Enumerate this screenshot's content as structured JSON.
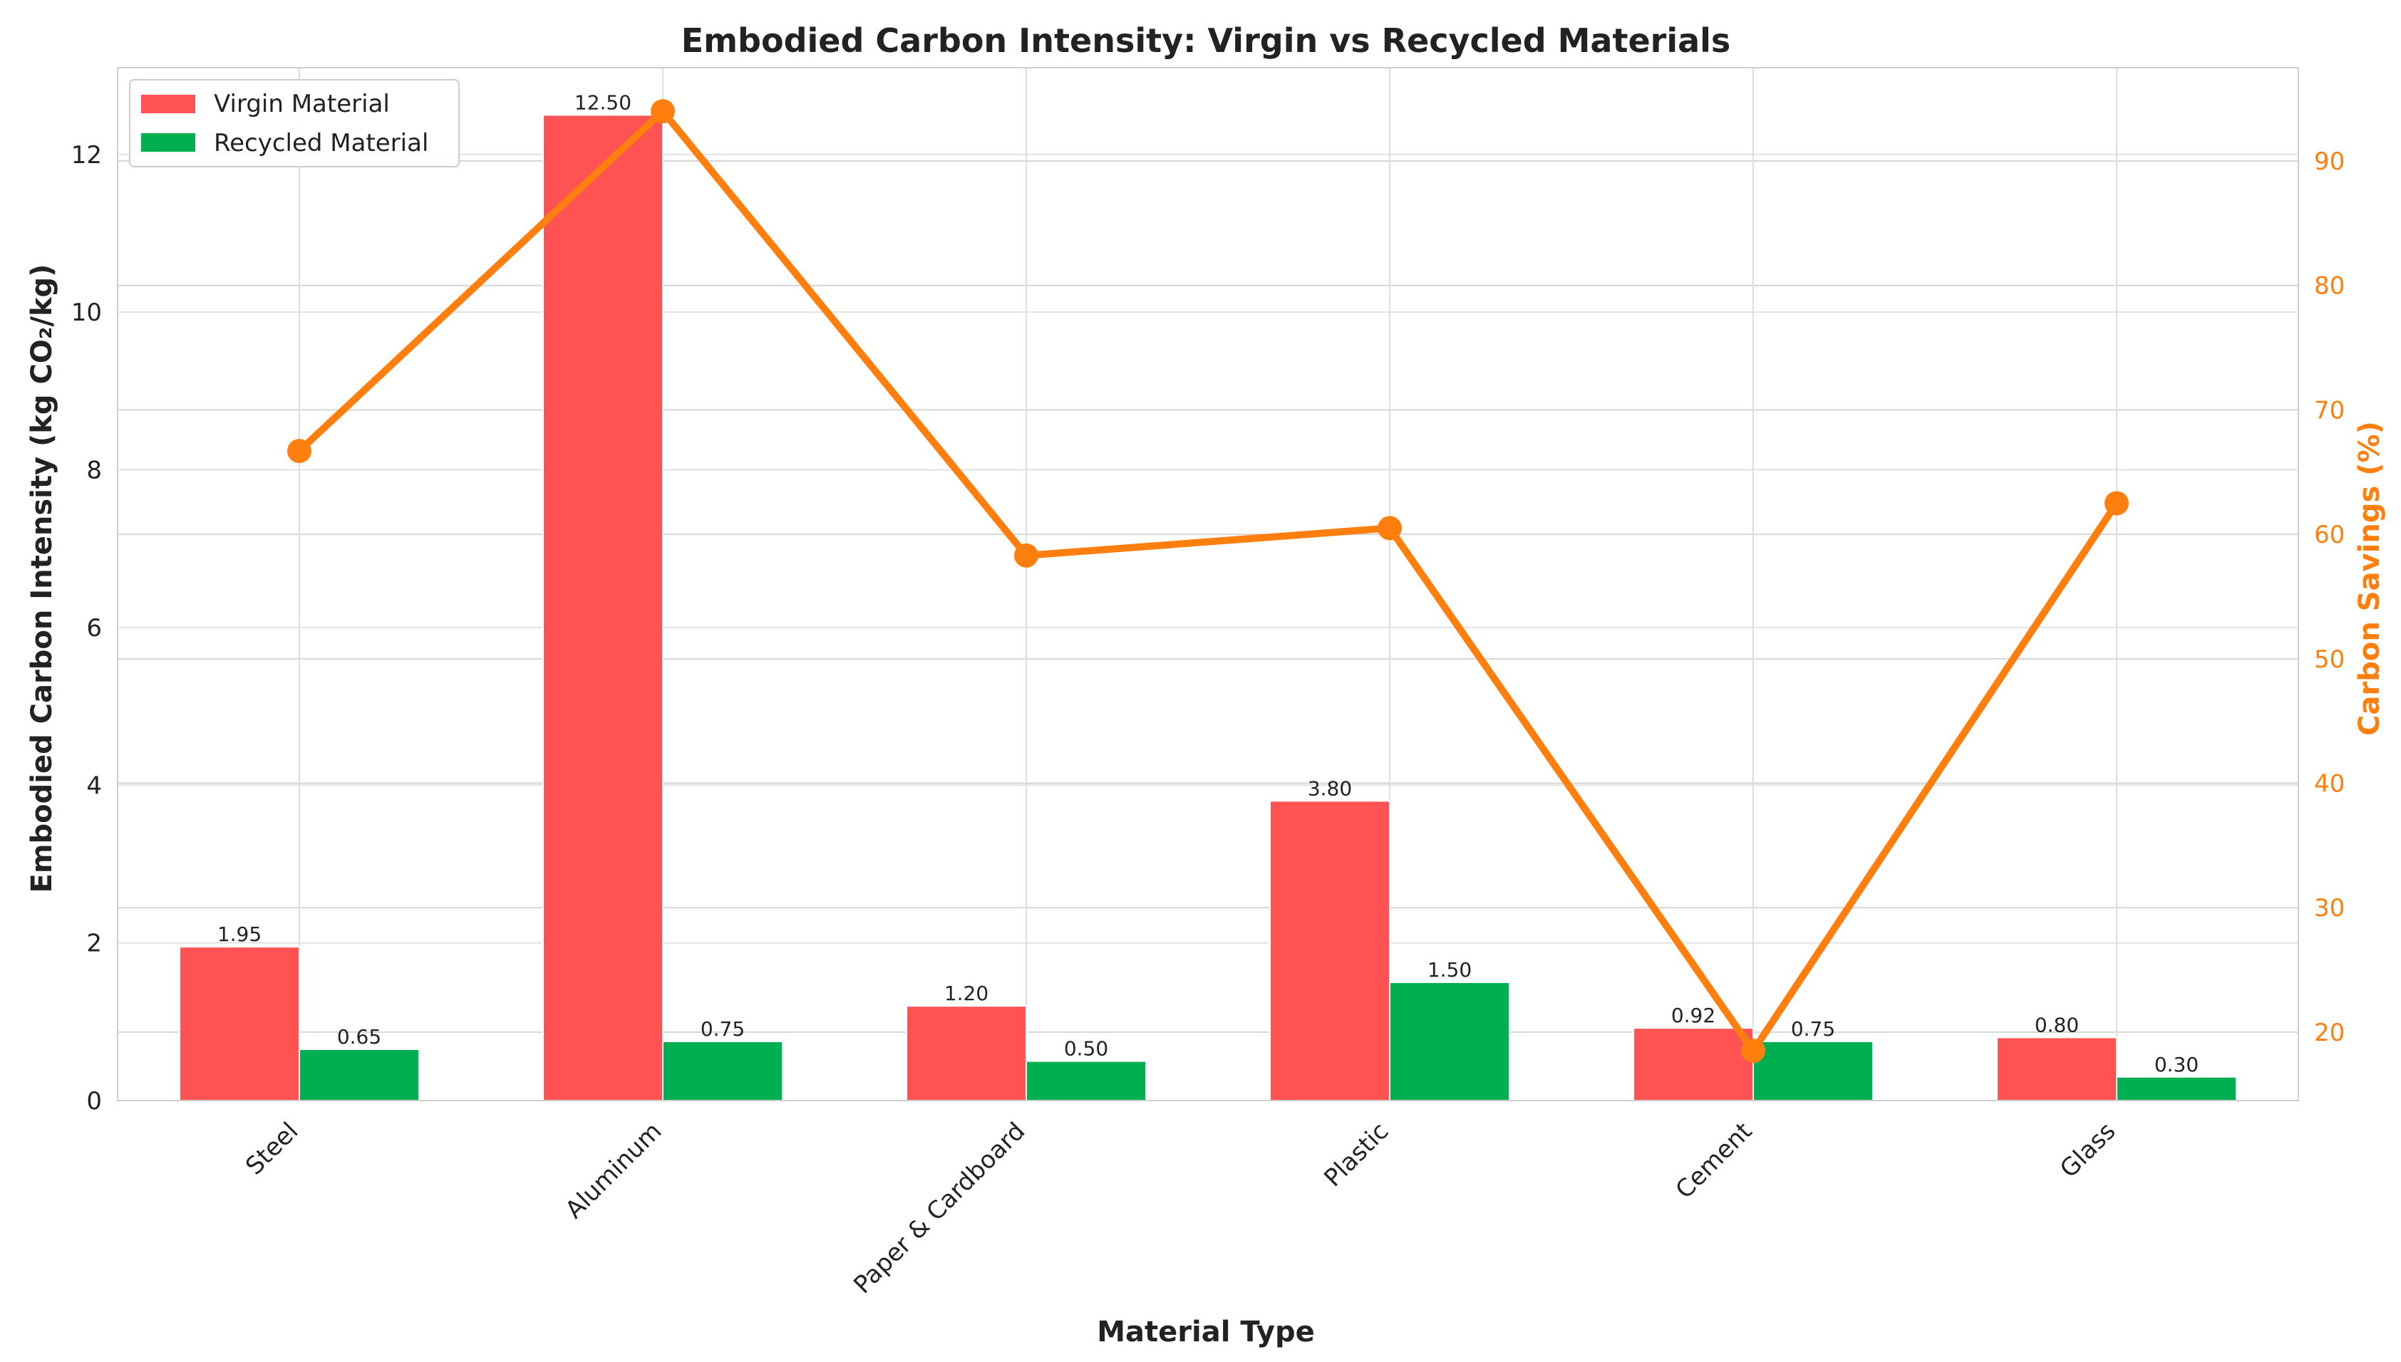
{
  "chart_data": {
    "type": "bar",
    "title": "Embodied Carbon Intensity: Virgin vs Recycled Materials",
    "xlabel": "Material Type",
    "ylabel": "Embodied Carbon Intensity (kg CO₂/kg)",
    "y2label": "Carbon Savings (%)",
    "categories": [
      "Steel",
      "Aluminum",
      "Paper & Cardboard",
      "Plastic",
      "Cement",
      "Glass"
    ],
    "ylim": [
      0,
      13.1
    ],
    "yticks": [
      0,
      2,
      4,
      6,
      8,
      10,
      12
    ],
    "y2lim": [
      14.5,
      97.5
    ],
    "y2ticks": [
      20,
      30,
      40,
      50,
      60,
      70,
      80,
      90
    ],
    "series": [
      {
        "name": "Virgin Material",
        "type": "bar",
        "axis": "left",
        "color": "#ff5252",
        "values": [
          1.95,
          12.5,
          1.2,
          3.8,
          0.92,
          0.8
        ],
        "labels": [
          "1.95",
          "12.50",
          "1.20",
          "3.80",
          "0.92",
          "0.80"
        ]
      },
      {
        "name": "Recycled Material",
        "type": "bar",
        "axis": "left",
        "color": "#00b050",
        "values": [
          0.65,
          0.75,
          0.5,
          1.5,
          0.75,
          0.3
        ],
        "labels": [
          "0.65",
          "0.75",
          "0.50",
          "1.50",
          "0.75",
          "0.30"
        ]
      },
      {
        "name": "Carbon Savings",
        "type": "line",
        "axis": "right",
        "color": "#ff7f0e",
        "values": [
          66.7,
          94.0,
          58.3,
          60.5,
          18.5,
          62.5
        ]
      }
    ],
    "legend": [
      "Virgin Material",
      "Recycled Material"
    ],
    "legend_position": "top-left",
    "grid": true
  }
}
